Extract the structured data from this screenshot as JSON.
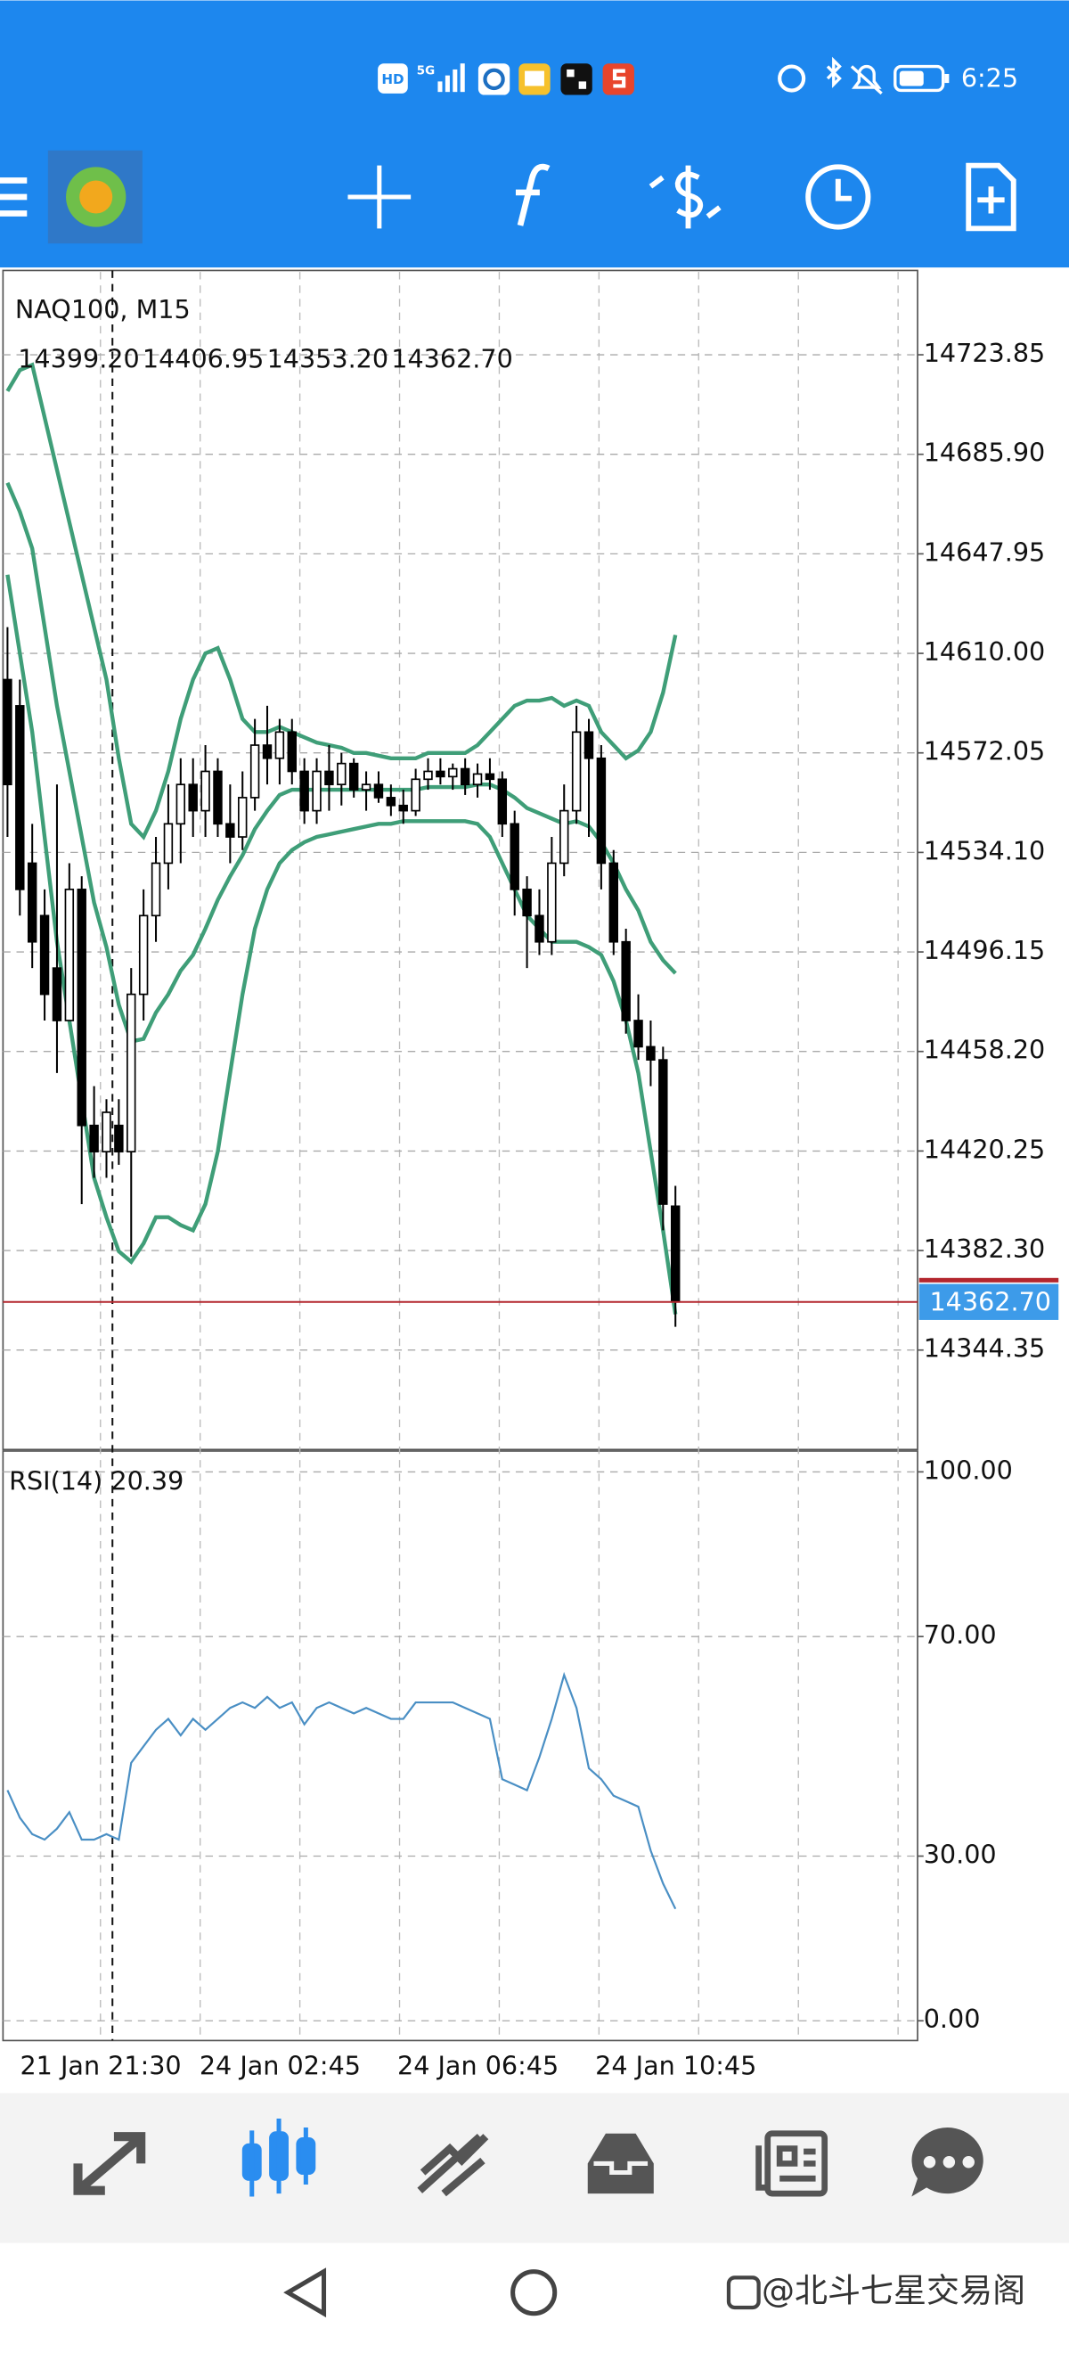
{
  "status_bar": {
    "badges": [
      "HD",
      "5G"
    ],
    "time": "6:25"
  },
  "watermark": "@北斗七星交易阁",
  "chart_data": [
    {
      "type": "candlestick",
      "title": "NAQ100, M15",
      "header_values": [
        {
          "value": 14399.2,
          "label": "14399.20"
        },
        {
          "value": 14406.95,
          "label": "14406.95"
        },
        {
          "value": 14353.2,
          "label": "14353.20"
        },
        {
          "value": 14362.7,
          "label": "14362.70"
        }
      ],
      "categories": [
        null,
        null,
        null,
        null,
        null,
        null,
        null,
        null,
        "21 Jan 21:30",
        null,
        null,
        null,
        null,
        null,
        null,
        null,
        "24 Jan 02:45",
        null,
        null,
        null,
        null,
        null,
        null,
        null,
        null,
        null,
        null,
        null,
        null,
        null,
        null,
        null,
        "24 Jan 06:45",
        null,
        null,
        null,
        null,
        null,
        null,
        null,
        null,
        null,
        null,
        null,
        null,
        null,
        null,
        null,
        "24 Jan 10:45",
        null,
        null,
        null,
        null,
        null,
        null
      ],
      "open": [
        14600,
        14590,
        14530,
        14510,
        14490,
        14470,
        14520,
        14430,
        14420,
        14430,
        14420,
        14480,
        14510,
        14530,
        14545,
        14560,
        14550,
        14565,
        14545,
        14540,
        14555,
        14575,
        14570,
        14580,
        14565,
        14550,
        14565,
        14560,
        14568,
        14558,
        14560,
        14555,
        14552,
        14550,
        14562,
        14565,
        14563,
        14566,
        14560,
        14564,
        14562,
        14545,
        14520,
        14510,
        14500,
        14530,
        14550,
        14580,
        14570,
        14530,
        14500,
        14470,
        14460,
        14455,
        14399.2
      ],
      "high": [
        14620,
        14600,
        14545,
        14520,
        14560,
        14530,
        14525,
        14445,
        14440,
        14440,
        14490,
        14520,
        14540,
        14560,
        14570,
        14570,
        14575,
        14570,
        14560,
        14565,
        14585,
        14590,
        14585,
        14585,
        14570,
        14570,
        14575,
        14572,
        14570,
        14565,
        14565,
        14560,
        14558,
        14566,
        14570,
        14570,
        14568,
        14570,
        14568,
        14570,
        14565,
        14550,
        14525,
        14520,
        14540,
        14560,
        14590,
        14585,
        14575,
        14535,
        14505,
        14480,
        14470,
        14460,
        14406.95
      ],
      "low": [
        14540,
        14510,
        14490,
        14470,
        14450,
        14470,
        14400,
        14410,
        14410,
        14415,
        14380,
        14470,
        14500,
        14520,
        14530,
        14540,
        14540,
        14540,
        14530,
        14535,
        14550,
        14560,
        14560,
        14560,
        14545,
        14545,
        14550,
        14552,
        14555,
        14550,
        14553,
        14548,
        14545,
        14548,
        14558,
        14560,
        14558,
        14556,
        14555,
        14558,
        14540,
        14510,
        14490,
        14495,
        14495,
        14525,
        14545,
        14540,
        14520,
        14495,
        14465,
        14455,
        14445,
        14390,
        14353.2
      ],
      "close": [
        14560,
        14520,
        14500,
        14480,
        14470,
        14520,
        14430,
        14420,
        14435,
        14420,
        14480,
        14510,
        14530,
        14545,
        14560,
        14550,
        14565,
        14545,
        14540,
        14555,
        14575,
        14570,
        14580,
        14565,
        14550,
        14565,
        14560,
        14568,
        14558,
        14560,
        14555,
        14552,
        14550,
        14562,
        14565,
        14563,
        14566,
        14560,
        14564,
        14562,
        14545,
        14520,
        14510,
        14500,
        14530,
        14550,
        14580,
        14570,
        14530,
        14500,
        14470,
        14460,
        14455,
        14400,
        14362.7
      ],
      "bull_color": "#ffffff",
      "bear_color": "#000000",
      "wick_color": "#000000",
      "overlays": [
        {
          "color": "#3f9e78",
          "values": [
            14710,
            14718,
            14720,
            14700,
            14680,
            14660,
            14640,
            14620,
            14600,
            14570,
            14545,
            14540,
            14550,
            14565,
            14585,
            14600,
            14610,
            14612,
            14600,
            14585,
            14580,
            14580,
            14582,
            14580,
            14578,
            14576,
            14575,
            14574,
            14572,
            14572,
            14571,
            14570,
            14570,
            14570,
            14572,
            14572,
            14572,
            14572,
            14575,
            14580,
            14585,
            14590,
            14592,
            14592,
            14593,
            14590,
            14592,
            14590,
            14580,
            14575,
            14570,
            14573,
            14580,
            14595,
            14617
          ]
        },
        {
          "color": "#3f9e78",
          "values": [
            14675,
            14664,
            14650,
            14620,
            14590,
            14565,
            14540,
            14515,
            14498,
            14476,
            14462,
            14463,
            14473,
            14480,
            14489,
            14495,
            14505,
            14516,
            14525,
            14533,
            14543,
            14550,
            14556,
            14558,
            14558,
            14558,
            14558,
            14558,
            14558,
            14558,
            14558,
            14558,
            14558,
            14558,
            14559,
            14559,
            14559,
            14559,
            14560,
            14560,
            14558,
            14555,
            14551,
            14549,
            14547,
            14545,
            14546,
            14544,
            14538,
            14530,
            14520,
            14512,
            14500,
            14493,
            14488
          ]
        },
        {
          "color": "#3f9e78",
          "values": [
            14640,
            14610,
            14580,
            14540,
            14500,
            14470,
            14440,
            14410,
            14395,
            14382,
            14378,
            14385,
            14395,
            14395,
            14392,
            14390,
            14400,
            14420,
            14450,
            14480,
            14505,
            14520,
            14530,
            14535,
            14538,
            14540,
            14541,
            14542,
            14543,
            14544,
            14545,
            14545,
            14546,
            14546,
            14546,
            14546,
            14546,
            14546,
            14545,
            14540,
            14530,
            14520,
            14510,
            14505,
            14500,
            14500,
            14500,
            14498,
            14495,
            14485,
            14470,
            14450,
            14420,
            14390,
            14358
          ]
        }
      ],
      "last_price": {
        "value": 14362.7,
        "label": "14362.70",
        "color": "#b3262d",
        "box_color": "#3d9be9"
      },
      "ylim": [
        14307,
        14756
      ],
      "yticks": [
        14723.85,
        {
          "value": 14685.9,
          "label": "14685.90"
        },
        14647.95,
        {
          "value": 14610,
          "label": "14610.00"
        },
        14572.05,
        {
          "value": 14534.1,
          "label": "14534.10"
        },
        14496.15,
        {
          "value": 14458.2,
          "label": "14458.20"
        },
        14420.25,
        {
          "value": 14382.3,
          "label": "14382.30"
        },
        14344.35
      ],
      "grid": true
    },
    {
      "type": "line",
      "title": "RSI(14) 20.39",
      "color": "#4a8fc4",
      "values": [
        42,
        37,
        34,
        33,
        35,
        38,
        33,
        33,
        34,
        33,
        47,
        50,
        53,
        55,
        52,
        55,
        53,
        55,
        57,
        58,
        57,
        59,
        57,
        58,
        54,
        57,
        58,
        57,
        56,
        57,
        56,
        55,
        55,
        58,
        58,
        58,
        58,
        57,
        56,
        55,
        44,
        43,
        42,
        48,
        55,
        63,
        57,
        46,
        44,
        41,
        40,
        39,
        31,
        25,
        20.39
      ],
      "ylim": [
        -3.6,
        103.8
      ],
      "yticks": [
        {
          "value": 100,
          "label": "100.00"
        },
        {
          "value": 70,
          "label": "70.00"
        },
        {
          "value": 30,
          "label": "30.00"
        },
        {
          "value": 0,
          "label": "0.00"
        }
      ],
      "grid": true
    }
  ]
}
